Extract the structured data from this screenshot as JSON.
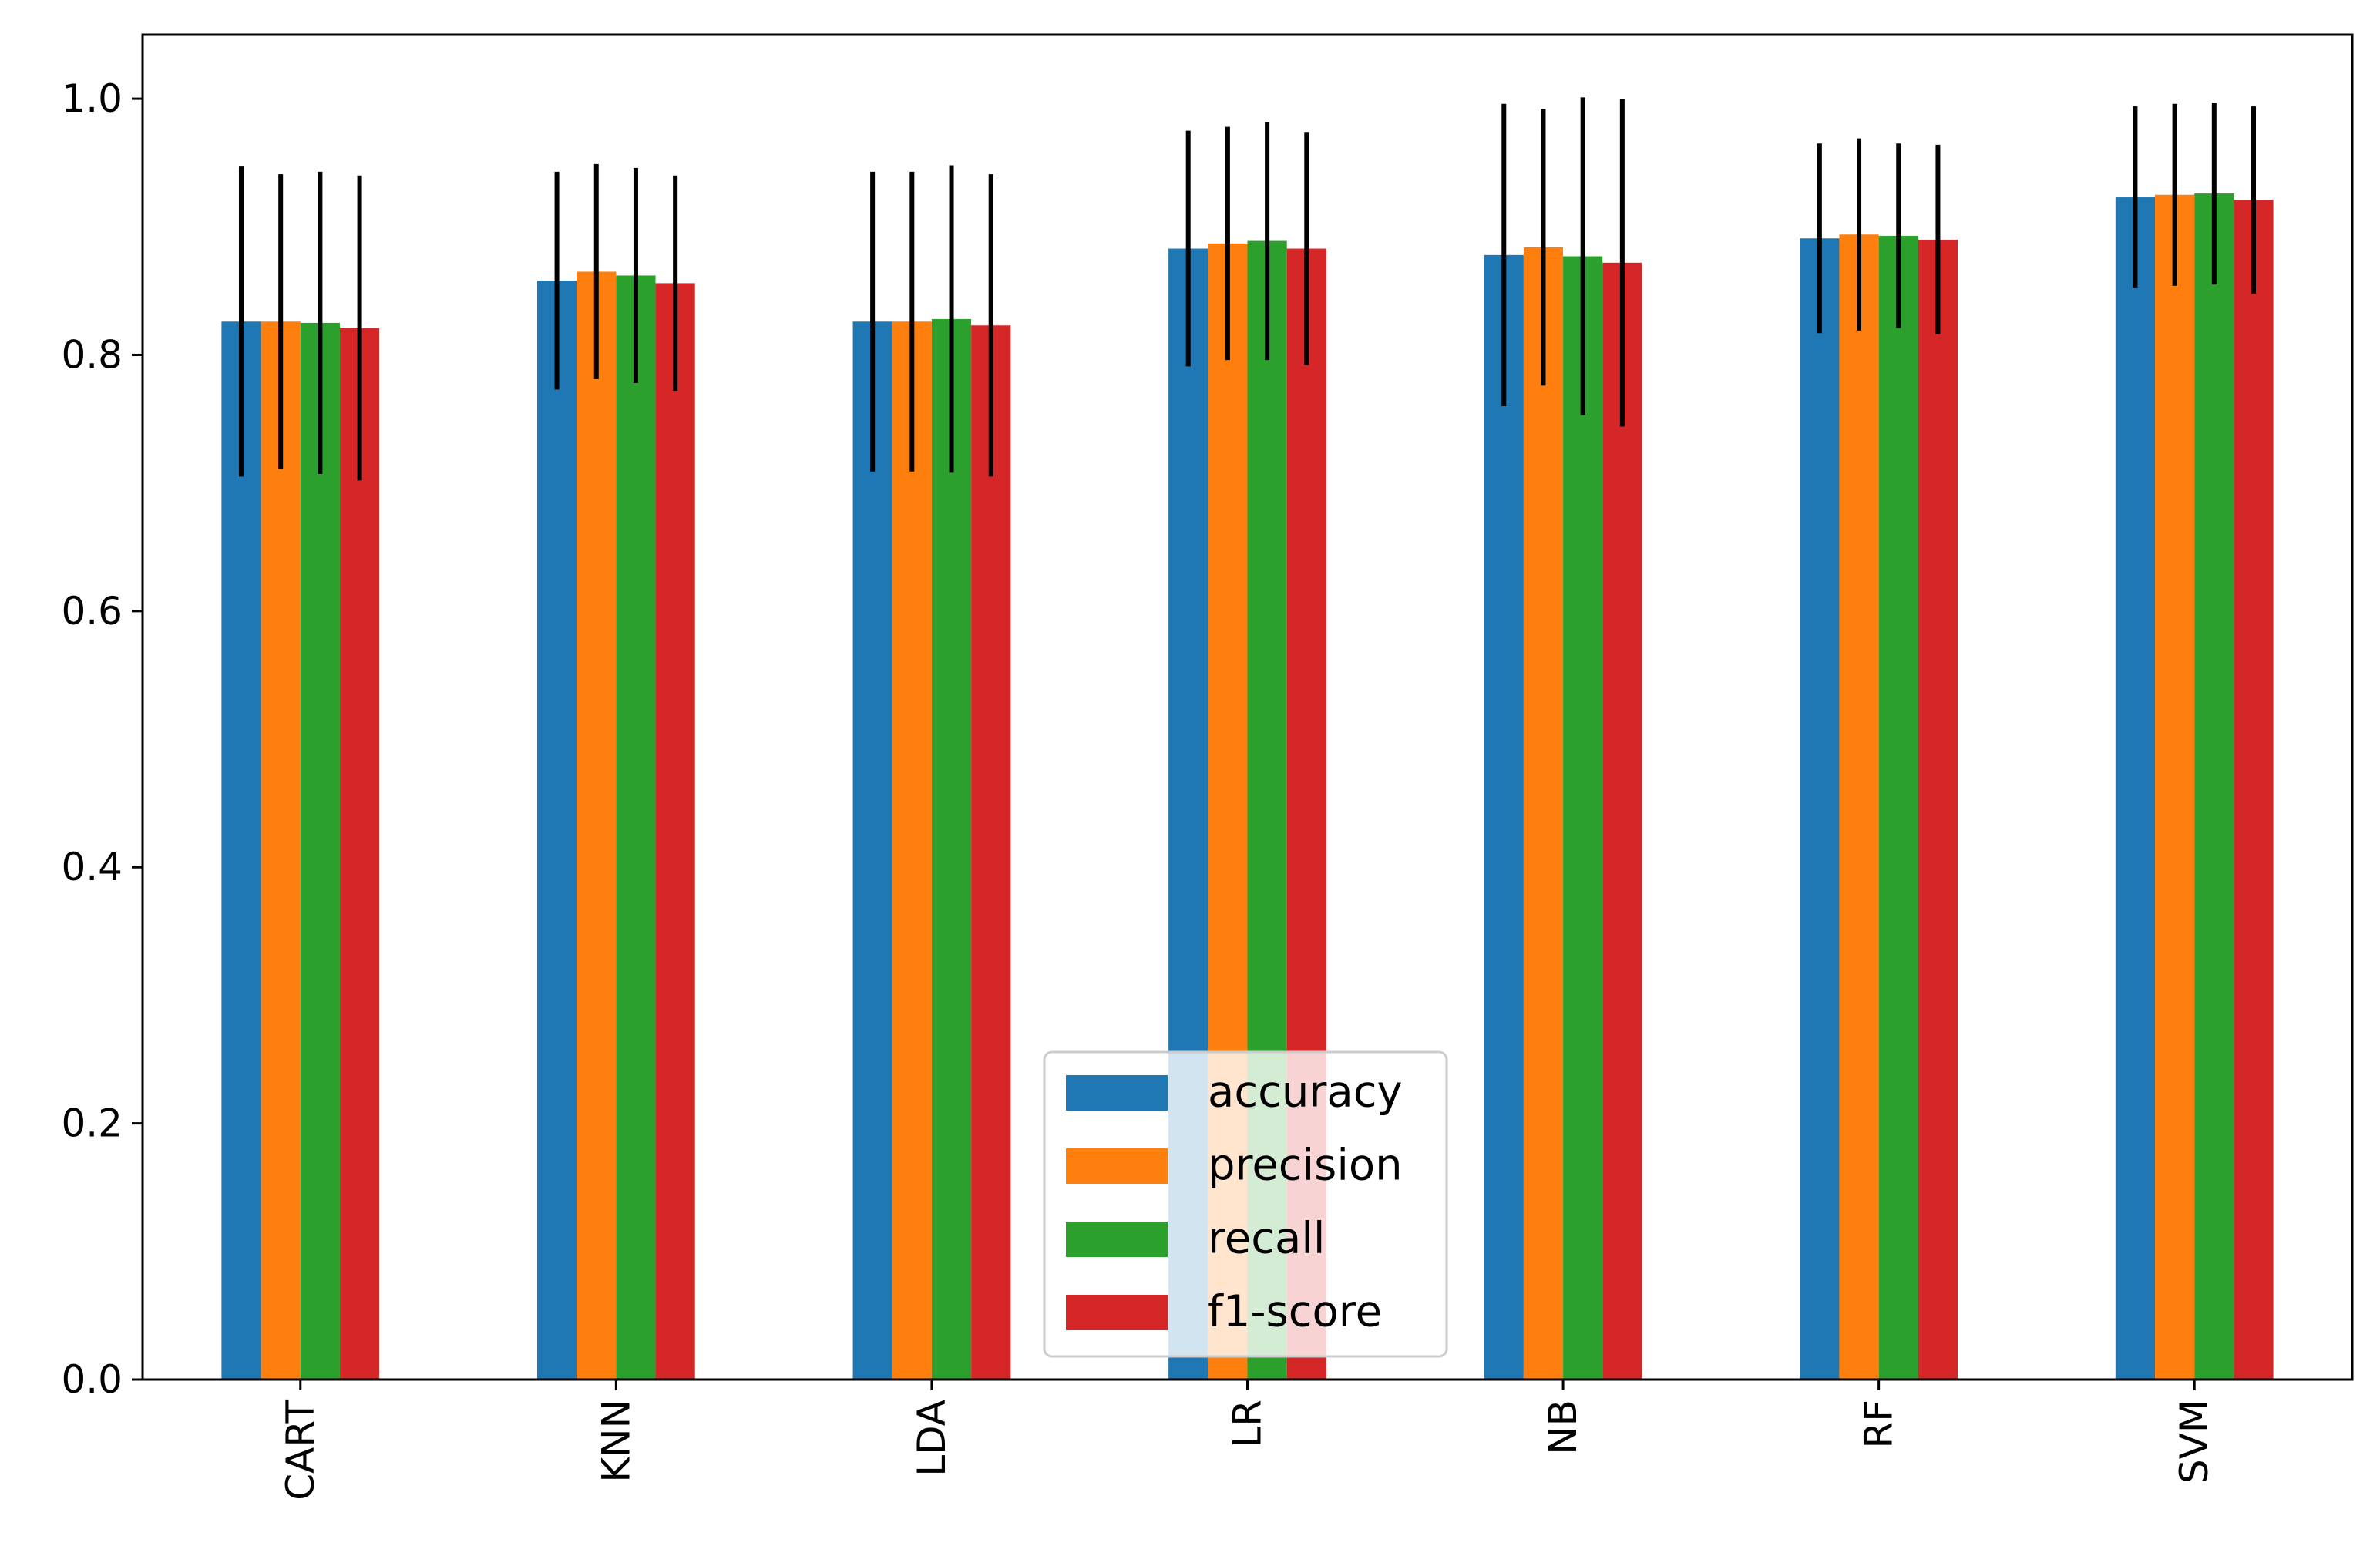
{
  "chart_data": {
    "type": "bar",
    "title": "",
    "xlabel": "",
    "ylabel": "",
    "ylim": [
      0,
      1.05
    ],
    "yticks": [
      0.0,
      0.2,
      0.4,
      0.6,
      0.8,
      1.0
    ],
    "ytick_labels": [
      "0.0",
      "0.2",
      "0.4",
      "0.6",
      "0.8",
      "1.0"
    ],
    "categories": [
      "CART",
      "KNN",
      "LDA",
      "LR",
      "NB",
      "RF",
      "SVM"
    ],
    "series": [
      {
        "name": "accuracy",
        "color": "#1f77b4",
        "values": [
          0.826,
          0.858,
          0.826,
          0.883,
          0.878,
          0.891,
          0.923
        ],
        "errors": [
          0.121,
          0.085,
          0.117,
          0.092,
          0.118,
          0.074,
          0.071
        ]
      },
      {
        "name": "precision",
        "color": "#ff7f0e",
        "values": [
          0.826,
          0.865,
          0.826,
          0.887,
          0.884,
          0.894,
          0.925
        ],
        "errors": [
          0.115,
          0.084,
          0.117,
          0.091,
          0.108,
          0.075,
          0.071
        ]
      },
      {
        "name": "recall",
        "color": "#2ca02c",
        "values": [
          0.825,
          0.862,
          0.828,
          0.889,
          0.877,
          0.893,
          0.926
        ],
        "errors": [
          0.118,
          0.084,
          0.12,
          0.093,
          0.124,
          0.072,
          0.071
        ]
      },
      {
        "name": "f1-score",
        "color": "#d62728",
        "values": [
          0.821,
          0.856,
          0.823,
          0.883,
          0.872,
          0.89,
          0.921
        ],
        "errors": [
          0.119,
          0.084,
          0.118,
          0.091,
          0.128,
          0.074,
          0.073
        ]
      }
    ],
    "error_bar_color": "#000000",
    "legend_position": "lower-center",
    "grid": false
  }
}
